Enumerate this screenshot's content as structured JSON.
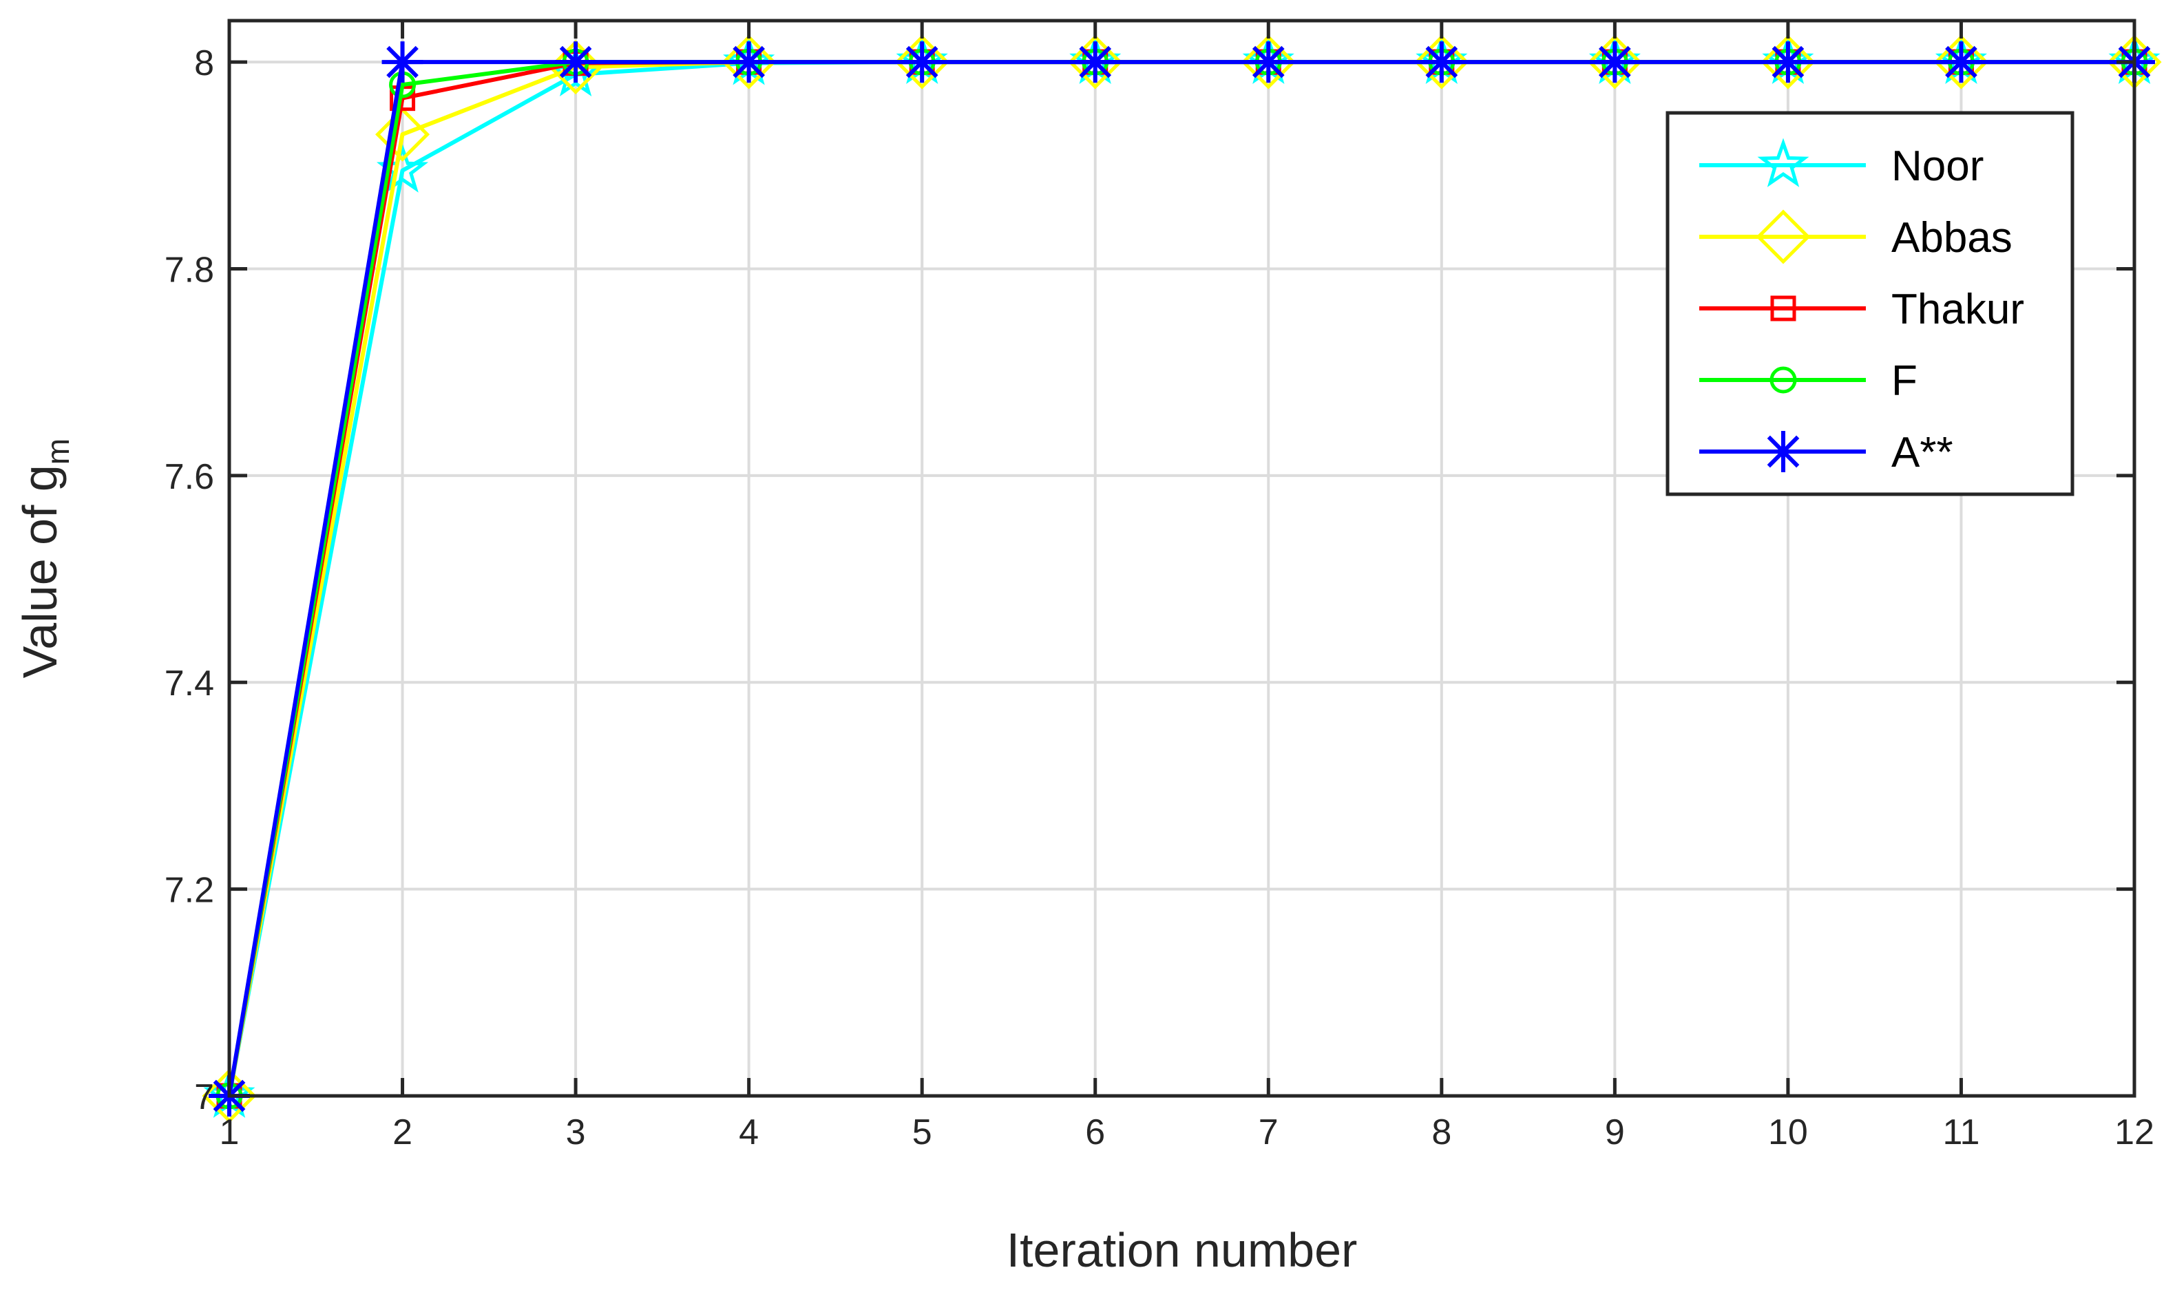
{
  "chart_data": {
    "type": "line",
    "xlabel": "Iteration number",
    "ylabel": "Value of g",
    "ylabel_subscript": "m",
    "xlim": [
      1,
      12
    ],
    "ylim": [
      7,
      8.04
    ],
    "xticks": [
      1,
      2,
      3,
      4,
      5,
      6,
      7,
      8,
      9,
      10,
      11,
      12
    ],
    "yticks": [
      7,
      7.2,
      7.4,
      7.6,
      7.8,
      8
    ],
    "ytick_labels": [
      "7",
      "7.2",
      "7.4",
      "7.6",
      "7.8",
      "8"
    ],
    "grid": true,
    "legend_position": "top-right",
    "x": [
      1,
      2,
      3,
      4,
      5,
      6,
      7,
      8,
      9,
      10,
      11,
      12
    ],
    "series": [
      {
        "name": "Noor",
        "color": "#00FFFF",
        "marker": "star",
        "values": [
          7,
          7.895,
          7.988,
          7.999,
          8,
          8,
          8,
          8,
          8,
          8,
          8,
          8
        ]
      },
      {
        "name": "Abbas",
        "color": "#FFFF00",
        "marker": "diamond",
        "values": [
          7,
          7.93,
          7.995,
          8,
          8,
          8,
          8,
          8,
          8,
          8,
          8,
          8
        ]
      },
      {
        "name": "Thakur",
        "color": "#FF0000",
        "marker": "square",
        "values": [
          7,
          7.965,
          7.999,
          8,
          8,
          8,
          8,
          8,
          8,
          8,
          8,
          8
        ]
      },
      {
        "name": "F",
        "color": "#00FF00",
        "marker": "circle",
        "values": [
          7,
          7.978,
          8,
          8,
          8,
          8,
          8,
          8,
          8,
          8,
          8,
          8
        ]
      },
      {
        "name": "A**",
        "color": "#0000FF",
        "marker": "asterisk",
        "values": [
          7,
          8,
          8,
          8,
          8,
          8,
          8,
          8,
          8,
          8,
          8,
          8
        ]
      }
    ]
  }
}
